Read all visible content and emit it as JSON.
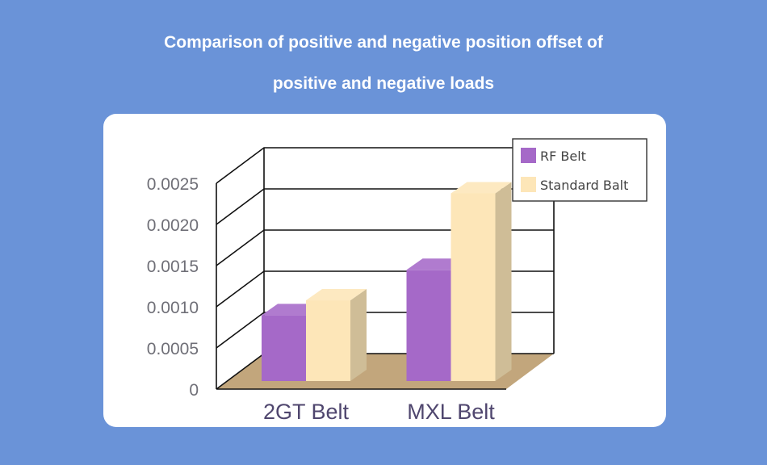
{
  "title": {
    "line1": "Comparison of positive and negative position offset of",
    "line2": "positive and negative loads"
  },
  "chart_data": {
    "type": "bar",
    "title": "Comparison of positive and negative position offset of positive and negative loads",
    "categories": [
      "2GT Belt",
      "MXL Belt"
    ],
    "series": [
      {
        "name": "RF Belt",
        "values": [
          0.0008,
          0.00135
        ],
        "color": "#a569c8"
      },
      {
        "name": "Standard Balt",
        "values": [
          0.00098,
          0.00228
        ],
        "color": "#fde6b8"
      }
    ],
    "y_ticks": [
      "0",
      "0.0005",
      "0.0010",
      "0.0015",
      "0.0020",
      "0.0025"
    ],
    "ylim": [
      0,
      0.0025
    ],
    "xlabel": "",
    "ylabel": "",
    "legend_position": "top-right",
    "floor_color": "#c2a67c"
  }
}
